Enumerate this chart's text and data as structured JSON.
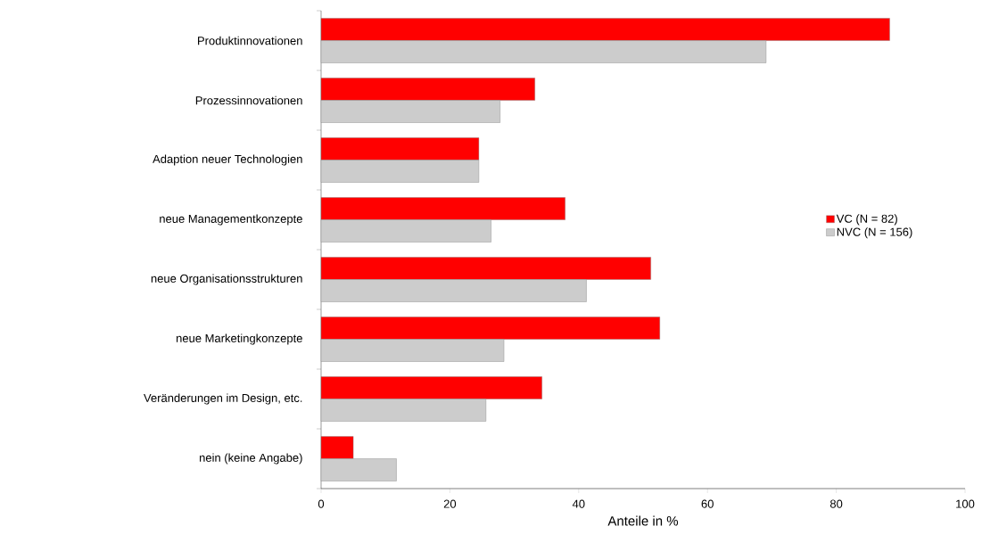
{
  "chart_data": {
    "type": "bar",
    "orientation": "horizontal",
    "categories": [
      "Produktinnovationen",
      "Prozessinnovationen",
      "Adaption neuer Technologien",
      "neue Managementkonzepte",
      "neue Organisationsstrukturen",
      "neue Marketingkonzepte",
      "Veränderungen im Design, etc.",
      "nein (keine Angabe)"
    ],
    "series": [
      {
        "name": "VC (N = 82)",
        "color": "#ff0000",
        "values": [
          88.3,
          33.2,
          24.5,
          37.9,
          51.2,
          52.6,
          34.3,
          5.0
        ]
      },
      {
        "name": "NVC (N = 156)",
        "color": "#cccccc",
        "values": [
          69.1,
          27.8,
          24.5,
          26.4,
          41.2,
          28.4,
          25.6,
          11.7
        ]
      }
    ],
    "xlabel": "Anteile in %",
    "xlim": [
      0,
      100
    ],
    "xticks": [
      0,
      20,
      40,
      60,
      80,
      100
    ],
    "legend": "right"
  }
}
